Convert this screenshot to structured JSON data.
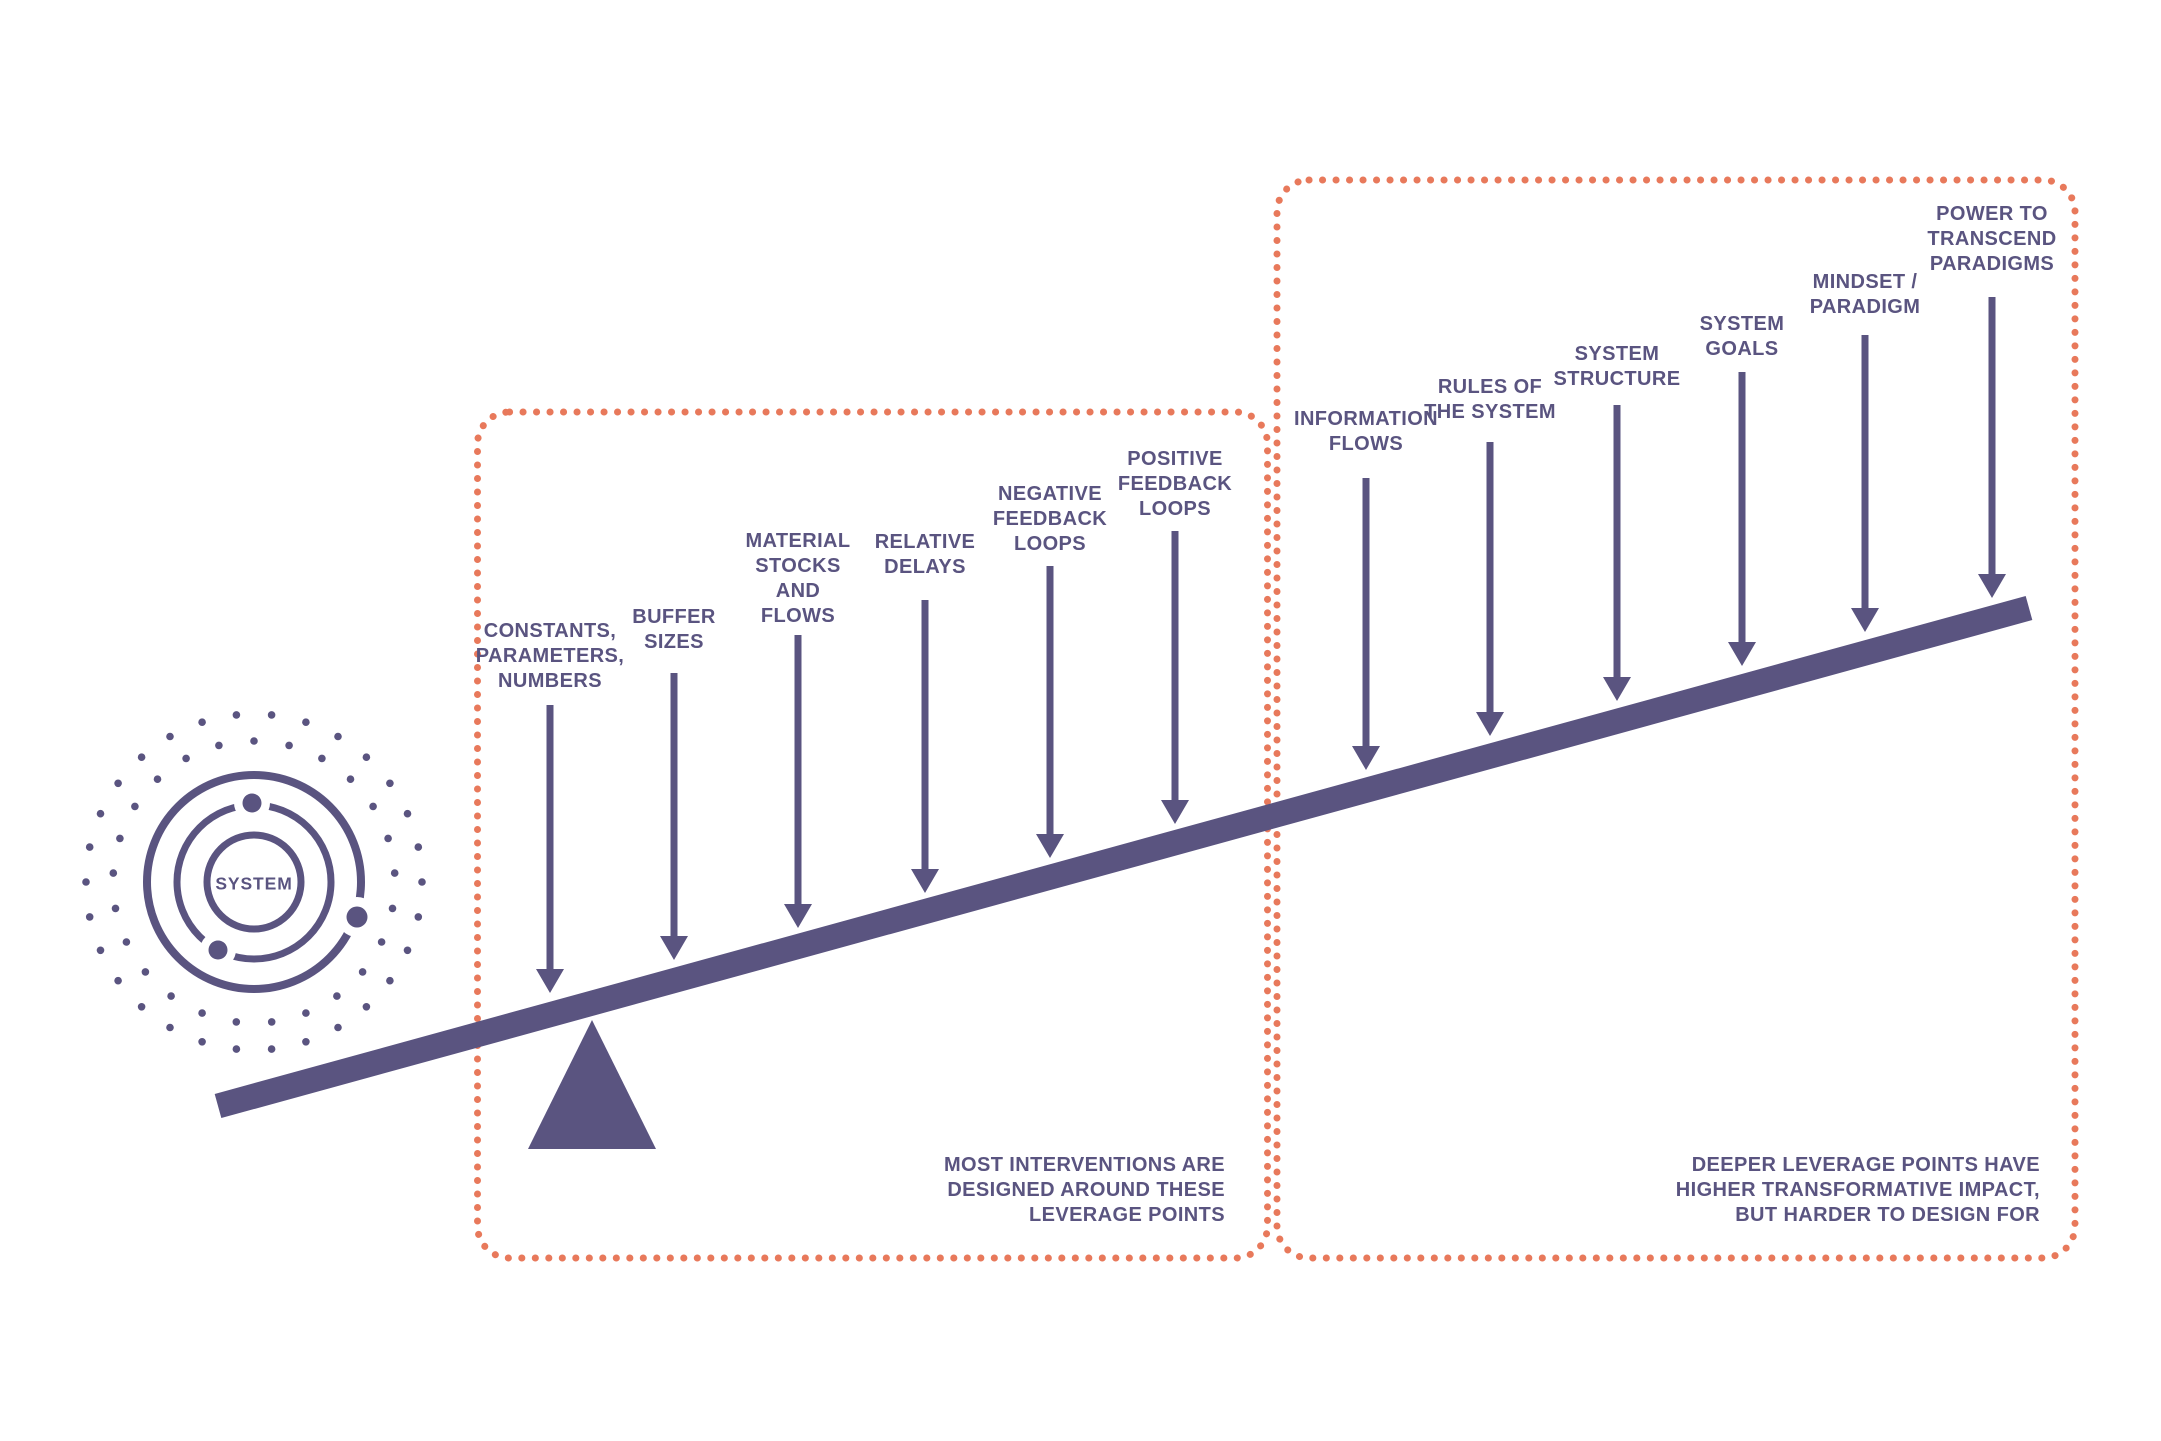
{
  "diagram": {
    "colors": {
      "purple": "#5a5480",
      "orange": "#e8795b",
      "background": "#ffffff"
    },
    "system_badge": {
      "label": "SYSTEM"
    },
    "left_group": {
      "leverage_points": [
        {
          "label": "CONSTANTS,\nPARAMETERS,\nNUMBERS"
        },
        {
          "label": "BUFFER\nSIZES"
        },
        {
          "label": "MATERIAL\nSTOCKS\nAND\nFLOWS"
        },
        {
          "label": "RELATIVE\nDELAYS"
        },
        {
          "label": "NEGATIVE\nFEEDBACK\nLOOPS"
        },
        {
          "label": "POSITIVE\nFEEDBACK\nLOOPS"
        }
      ],
      "caption": "MOST INTERVENTIONS ARE\nDESIGNED AROUND THESE\nLEVERAGE POINTS"
    },
    "right_group": {
      "leverage_points": [
        {
          "label": "INFORMATION\nFLOWS"
        },
        {
          "label": "RULES OF\nTHE SYSTEM"
        },
        {
          "label": "SYSTEM\nSTRUCTURE"
        },
        {
          "label": "SYSTEM\nGOALS"
        },
        {
          "label": "MINDSET /\nPARADIGM"
        },
        {
          "label": "POWER TO\nTRANSCEND\nPARADIGMS"
        }
      ],
      "caption": "DEEPER LEVERAGE POINTS HAVE\nHIGHER TRANSFORMATIVE IMPACT,\nBUT HARDER TO DESIGN FOR"
    }
  }
}
